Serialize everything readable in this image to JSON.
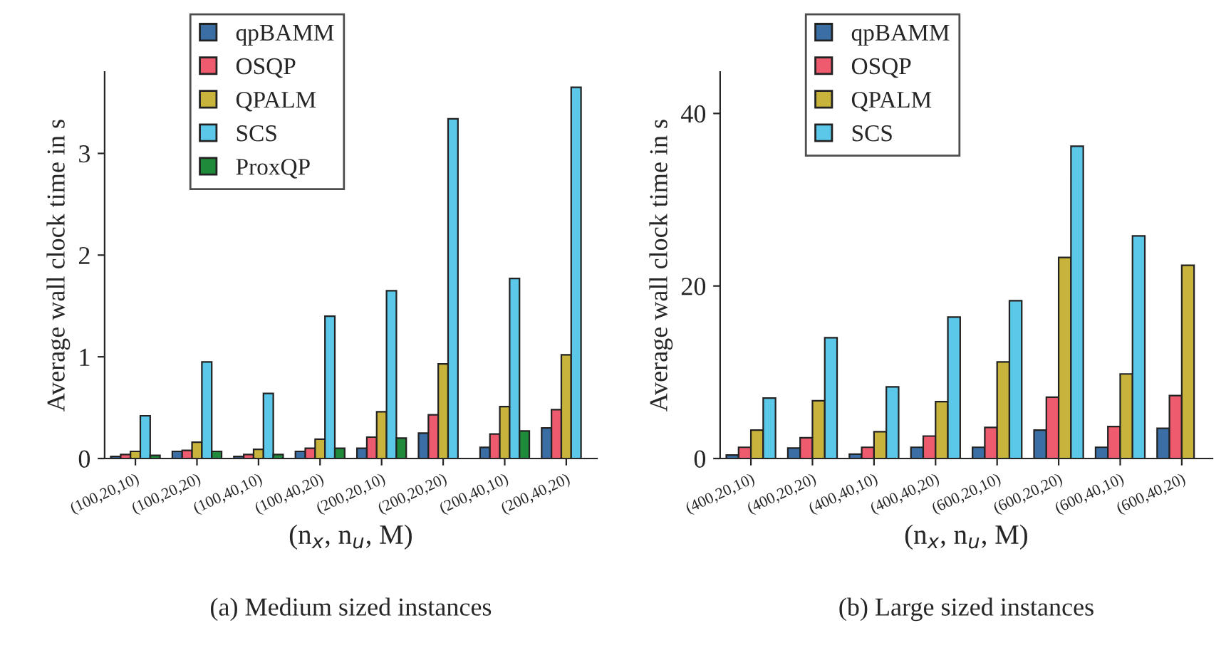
{
  "chart_data": [
    {
      "type": "bar",
      "xlabel": "(n$_{x}$, n$_{u}$, M)",
      "ylabel": "Average wall clock time in s",
      "annotations": [
        "(a) Medium sized instances"
      ],
      "categories": [
        "(100,20,10)",
        "(100,20,20)",
        "(100,40,10)",
        "(100,40,20)",
        "(200,20,10)",
        "(200,20,20)",
        "(200,40,10)",
        "(200,40,20)"
      ],
      "series": [
        {
          "name": "qpBAMM",
          "color": "#3a6ea5",
          "values": [
            0.02,
            0.07,
            0.02,
            0.07,
            0.1,
            0.25,
            0.11,
            0.3
          ]
        },
        {
          "name": "OSQP",
          "color": "#ef5b6e",
          "values": [
            0.04,
            0.08,
            0.04,
            0.1,
            0.21,
            0.43,
            0.24,
            0.48
          ]
        },
        {
          "name": "QPALM",
          "color": "#c8b43c",
          "values": [
            0.07,
            0.16,
            0.09,
            0.19,
            0.46,
            0.93,
            0.51,
            1.02
          ]
        },
        {
          "name": "SCS",
          "color": "#5bc8ea",
          "values": [
            0.42,
            0.95,
            0.64,
            1.4,
            1.65,
            3.34,
            1.77,
            3.65
          ]
        },
        {
          "name": "ProxQP",
          "color": "#1f8a3a",
          "values": [
            0.03,
            0.07,
            0.04,
            0.1,
            0.2,
            null,
            0.27,
            null
          ]
        }
      ],
      "ylim": [
        0,
        3.8
      ],
      "yticks": [
        0,
        1,
        2,
        3
      ],
      "legend": "top left",
      "grid": false
    },
    {
      "type": "bar",
      "xlabel": "(n$_{x}$, n$_{u}$, M)",
      "ylabel": "Average wall clock time in s",
      "annotations": [
        "(b) Large sized instances"
      ],
      "categories": [
        "(400,20,10)",
        "(400,20,20)",
        "(400,40,10)",
        "(400,40,20)",
        "(600,20,10)",
        "(600,20,20)",
        "(600,40,10)",
        "(600,40,20)"
      ],
      "series": [
        {
          "name": "qpBAMM",
          "color": "#3a6ea5",
          "values": [
            0.4,
            1.2,
            0.5,
            1.3,
            1.3,
            3.3,
            1.3,
            3.5
          ]
        },
        {
          "name": "OSQP",
          "color": "#ef5b6e",
          "values": [
            1.3,
            2.4,
            1.3,
            2.6,
            3.6,
            7.1,
            3.7,
            7.3
          ]
        },
        {
          "name": "QPALM",
          "color": "#c8b43c",
          "values": [
            3.3,
            6.7,
            3.1,
            6.6,
            11.2,
            23.3,
            9.8,
            22.4
          ]
        },
        {
          "name": "SCS",
          "color": "#5bc8ea",
          "values": [
            7.0,
            14.0,
            8.3,
            16.4,
            18.3,
            36.2,
            25.8,
            null
          ]
        }
      ],
      "ylim": [
        0,
        44.8
      ],
      "yticks": [
        0,
        20,
        40
      ],
      "legend": "top left",
      "grid": false
    }
  ]
}
